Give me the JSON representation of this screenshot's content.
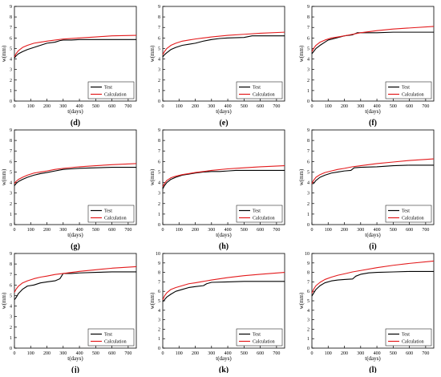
{
  "colors": {
    "test": "#000000",
    "calculation": "#e31a1c",
    "axis": "#000000"
  },
  "chart_data": [
    {
      "type": "line",
      "panel_label": "(d)",
      "xlabel": "t(days)",
      "ylabel": "w(mm)",
      "xlim": [
        0,
        750
      ],
      "ylim": [
        0,
        9
      ],
      "xticks": [
        0,
        100,
        200,
        300,
        400,
        500,
        600,
        700
      ],
      "yticks": [
        0,
        1,
        2,
        3,
        4,
        5,
        6,
        7,
        8,
        9
      ],
      "legend": "bottom-right",
      "series": [
        {
          "name": "Test",
          "x": [
            0,
            10,
            25,
            50,
            80,
            120,
            160,
            200,
            250,
            280,
            300,
            350,
            400,
            500,
            600,
            750
          ],
          "y": [
            4.1,
            4.3,
            4.5,
            4.7,
            4.9,
            5.1,
            5.3,
            5.5,
            5.6,
            5.75,
            5.8,
            5.8,
            5.85,
            5.85,
            5.85,
            5.85
          ]
        },
        {
          "name": "Calculation",
          "x": [
            0,
            10,
            25,
            50,
            80,
            120,
            160,
            200,
            250,
            300,
            400,
            500,
            600,
            750
          ],
          "y": [
            4.2,
            4.5,
            4.8,
            5.1,
            5.3,
            5.5,
            5.6,
            5.7,
            5.8,
            5.9,
            6.0,
            6.1,
            6.2,
            6.25
          ]
        }
      ]
    },
    {
      "type": "line",
      "panel_label": "(e)",
      "xlabel": "t(days)",
      "ylabel": "w(mm)",
      "xlim": [
        0,
        750
      ],
      "ylim": [
        0,
        9
      ],
      "xticks": [
        0,
        100,
        200,
        300,
        400,
        500,
        600,
        700
      ],
      "yticks": [
        0,
        1,
        2,
        3,
        4,
        5,
        6,
        7,
        8,
        9
      ],
      "legend": "bottom-right",
      "series": [
        {
          "name": "Test",
          "x": [
            0,
            10,
            25,
            50,
            80,
            120,
            160,
            200,
            250,
            300,
            350,
            400,
            500,
            550,
            600,
            750
          ],
          "y": [
            4.2,
            4.4,
            4.6,
            4.9,
            5.1,
            5.3,
            5.4,
            5.5,
            5.7,
            5.85,
            5.95,
            6.0,
            6.05,
            6.2,
            6.2,
            6.2
          ]
        },
        {
          "name": "Calculation",
          "x": [
            0,
            10,
            25,
            50,
            80,
            120,
            160,
            200,
            250,
            300,
            400,
            500,
            600,
            750
          ],
          "y": [
            4.4,
            4.7,
            5.0,
            5.3,
            5.5,
            5.7,
            5.8,
            5.9,
            6.0,
            6.1,
            6.25,
            6.35,
            6.45,
            6.55
          ]
        }
      ]
    },
    {
      "type": "line",
      "panel_label": "(f)",
      "xlabel": "t(days)",
      "ylabel": "w(mm)",
      "xlim": [
        0,
        750
      ],
      "ylim": [
        0,
        9
      ],
      "xticks": [
        0,
        100,
        200,
        300,
        400,
        500,
        600,
        700
      ],
      "yticks": [
        0,
        1,
        2,
        3,
        4,
        5,
        6,
        7,
        8,
        9
      ],
      "legend": "bottom-right",
      "series": [
        {
          "name": "Test",
          "x": [
            0,
            10,
            25,
            50,
            80,
            100,
            150,
            200,
            250,
            280,
            300,
            400,
            500,
            600,
            750
          ],
          "y": [
            4.5,
            4.7,
            5.0,
            5.3,
            5.6,
            5.8,
            6.0,
            6.2,
            6.3,
            6.5,
            6.5,
            6.5,
            6.55,
            6.55,
            6.55
          ]
        },
        {
          "name": "Calculation",
          "x": [
            0,
            10,
            25,
            50,
            80,
            120,
            160,
            200,
            250,
            300,
            400,
            500,
            600,
            750
          ],
          "y": [
            4.7,
            5.0,
            5.3,
            5.6,
            5.8,
            6.0,
            6.1,
            6.2,
            6.35,
            6.5,
            6.7,
            6.85,
            6.95,
            7.1
          ]
        }
      ]
    },
    {
      "type": "line",
      "panel_label": "(g)",
      "xlabel": "t(days)",
      "ylabel": "w(mm)",
      "xlim": [
        0,
        750
      ],
      "ylim": [
        0,
        9
      ],
      "xticks": [
        0,
        100,
        200,
        300,
        400,
        500,
        600,
        700
      ],
      "yticks": [
        0,
        1,
        2,
        3,
        4,
        5,
        6,
        7,
        8,
        9
      ],
      "legend": "bottom-right",
      "series": [
        {
          "name": "Test",
          "x": [
            0,
            10,
            25,
            50,
            80,
            120,
            160,
            200,
            250,
            300,
            350,
            400,
            500,
            600,
            750
          ],
          "y": [
            3.7,
            3.9,
            4.1,
            4.3,
            4.5,
            4.7,
            4.85,
            4.95,
            5.1,
            5.25,
            5.3,
            5.35,
            5.4,
            5.45,
            5.45
          ]
        },
        {
          "name": "Calculation",
          "x": [
            0,
            10,
            25,
            50,
            80,
            120,
            160,
            200,
            250,
            300,
            400,
            500,
            600,
            750
          ],
          "y": [
            3.9,
            4.1,
            4.3,
            4.5,
            4.7,
            4.9,
            5.0,
            5.1,
            5.25,
            5.35,
            5.5,
            5.6,
            5.7,
            5.8
          ]
        }
      ]
    },
    {
      "type": "line",
      "panel_label": "(h)",
      "xlabel": "t(days)",
      "ylabel": "w(mm)",
      "xlim": [
        0,
        750
      ],
      "ylim": [
        0,
        9
      ],
      "xticks": [
        0,
        100,
        200,
        300,
        400,
        500,
        600,
        700
      ],
      "yticks": [
        0,
        1,
        2,
        3,
        4,
        5,
        6,
        7,
        8,
        9
      ],
      "legend": "bottom-right",
      "series": [
        {
          "name": "Test",
          "x": [
            0,
            10,
            25,
            50,
            80,
            120,
            160,
            200,
            250,
            300,
            350,
            400,
            450,
            500,
            600,
            750
          ],
          "y": [
            3.4,
            3.7,
            4.0,
            4.3,
            4.5,
            4.7,
            4.8,
            4.9,
            5.0,
            5.05,
            5.05,
            5.1,
            5.15,
            5.15,
            5.15,
            5.15
          ]
        },
        {
          "name": "Calculation",
          "x": [
            0,
            10,
            25,
            50,
            80,
            120,
            160,
            200,
            250,
            300,
            400,
            500,
            600,
            750
          ],
          "y": [
            3.6,
            3.9,
            4.2,
            4.45,
            4.6,
            4.75,
            4.85,
            4.95,
            5.05,
            5.15,
            5.3,
            5.4,
            5.5,
            5.6
          ]
        }
      ]
    },
    {
      "type": "line",
      "panel_label": "(i)",
      "xlabel": "t(days)",
      "ylabel": "w(mm)",
      "xlim": [
        0,
        750
      ],
      "ylim": [
        0,
        9
      ],
      "xticks": [
        0,
        100,
        200,
        300,
        400,
        500,
        600,
        700
      ],
      "yticks": [
        0,
        1,
        2,
        3,
        4,
        5,
        6,
        7,
        8,
        9
      ],
      "legend": "bottom-right",
      "series": [
        {
          "name": "Test",
          "x": [
            0,
            10,
            25,
            50,
            80,
            120,
            160,
            200,
            240,
            260,
            300,
            400,
            500,
            600,
            750
          ],
          "y": [
            3.9,
            3.9,
            4.2,
            4.5,
            4.7,
            4.9,
            5.0,
            5.1,
            5.15,
            5.4,
            5.45,
            5.5,
            5.6,
            5.65,
            5.65
          ]
        },
        {
          "name": "Calculation",
          "x": [
            0,
            10,
            25,
            50,
            80,
            120,
            160,
            200,
            250,
            300,
            400,
            500,
            600,
            750
          ],
          "y": [
            3.9,
            4.2,
            4.5,
            4.75,
            4.95,
            5.1,
            5.25,
            5.35,
            5.5,
            5.6,
            5.8,
            5.95,
            6.1,
            6.25
          ]
        }
      ]
    },
    {
      "type": "line",
      "panel_label": "(j)",
      "xlabel": "t(days)",
      "ylabel": "w(mm)",
      "xlim": [
        0,
        750
      ],
      "ylim": [
        0,
        9
      ],
      "xticks": [
        0,
        100,
        200,
        300,
        400,
        500,
        600,
        700
      ],
      "yticks": [
        0,
        1,
        2,
        3,
        4,
        5,
        6,
        7,
        8,
        9
      ],
      "legend": "bottom-right",
      "series": [
        {
          "name": "Test",
          "x": [
            0,
            10,
            25,
            50,
            80,
            120,
            160,
            200,
            250,
            280,
            300,
            350,
            400,
            500,
            600,
            750
          ],
          "y": [
            4.6,
            4.8,
            5.2,
            5.6,
            5.9,
            6.0,
            6.2,
            6.3,
            6.4,
            6.6,
            7.1,
            7.1,
            7.15,
            7.2,
            7.25,
            7.25
          ]
        },
        {
          "name": "Calculation",
          "x": [
            0,
            10,
            25,
            50,
            80,
            120,
            160,
            200,
            250,
            300,
            400,
            500,
            600,
            750
          ],
          "y": [
            5.3,
            5.6,
            5.9,
            6.2,
            6.4,
            6.6,
            6.75,
            6.85,
            7.0,
            7.1,
            7.3,
            7.45,
            7.6,
            7.75
          ]
        }
      ]
    },
    {
      "type": "line",
      "panel_label": "(k)",
      "xlabel": "t(days)",
      "ylabel": "w(mm)",
      "xlim": [
        0,
        750
      ],
      "ylim": [
        0,
        10
      ],
      "xticks": [
        0,
        100,
        200,
        300,
        400,
        500,
        600,
        700
      ],
      "yticks": [
        0,
        1,
        2,
        3,
        4,
        5,
        6,
        7,
        8,
        9,
        10
      ],
      "legend": "bottom-right",
      "series": [
        {
          "name": "Test",
          "x": [
            0,
            10,
            25,
            50,
            80,
            120,
            160,
            200,
            250,
            270,
            300,
            400,
            500,
            600,
            750
          ],
          "y": [
            4.9,
            5.1,
            5.4,
            5.7,
            6.0,
            6.2,
            6.4,
            6.5,
            6.6,
            6.8,
            6.95,
            7.0,
            7.05,
            7.05,
            7.05
          ]
        },
        {
          "name": "Calculation",
          "x": [
            0,
            10,
            25,
            50,
            80,
            120,
            160,
            200,
            250,
            300,
            400,
            500,
            600,
            750
          ],
          "y": [
            5.1,
            5.5,
            5.85,
            6.2,
            6.4,
            6.6,
            6.8,
            6.9,
            7.05,
            7.2,
            7.45,
            7.65,
            7.8,
            8.0
          ]
        }
      ]
    },
    {
      "type": "line",
      "panel_label": "(l)",
      "xlabel": "t(days)",
      "ylabel": "w(mm)",
      "xlim": [
        0,
        750
      ],
      "ylim": [
        0,
        10
      ],
      "xticks": [
        0,
        100,
        200,
        300,
        400,
        500,
        600,
        700
      ],
      "yticks": [
        0,
        1,
        2,
        3,
        4,
        5,
        6,
        7,
        8,
        9,
        10
      ],
      "legend": "bottom-right",
      "series": [
        {
          "name": "Test",
          "x": [
            0,
            10,
            25,
            50,
            80,
            120,
            160,
            200,
            250,
            270,
            300,
            350,
            400,
            500,
            600,
            750
          ],
          "y": [
            5.5,
            5.8,
            6.2,
            6.6,
            6.9,
            7.1,
            7.2,
            7.25,
            7.3,
            7.6,
            7.8,
            7.95,
            8.0,
            8.05,
            8.1,
            8.1
          ]
        },
        {
          "name": "Calculation",
          "x": [
            0,
            10,
            25,
            50,
            80,
            120,
            160,
            200,
            250,
            300,
            400,
            500,
            600,
            750
          ],
          "y": [
            5.8,
            6.2,
            6.6,
            6.95,
            7.25,
            7.5,
            7.7,
            7.85,
            8.05,
            8.2,
            8.5,
            8.75,
            8.95,
            9.2
          ]
        }
      ]
    }
  ]
}
